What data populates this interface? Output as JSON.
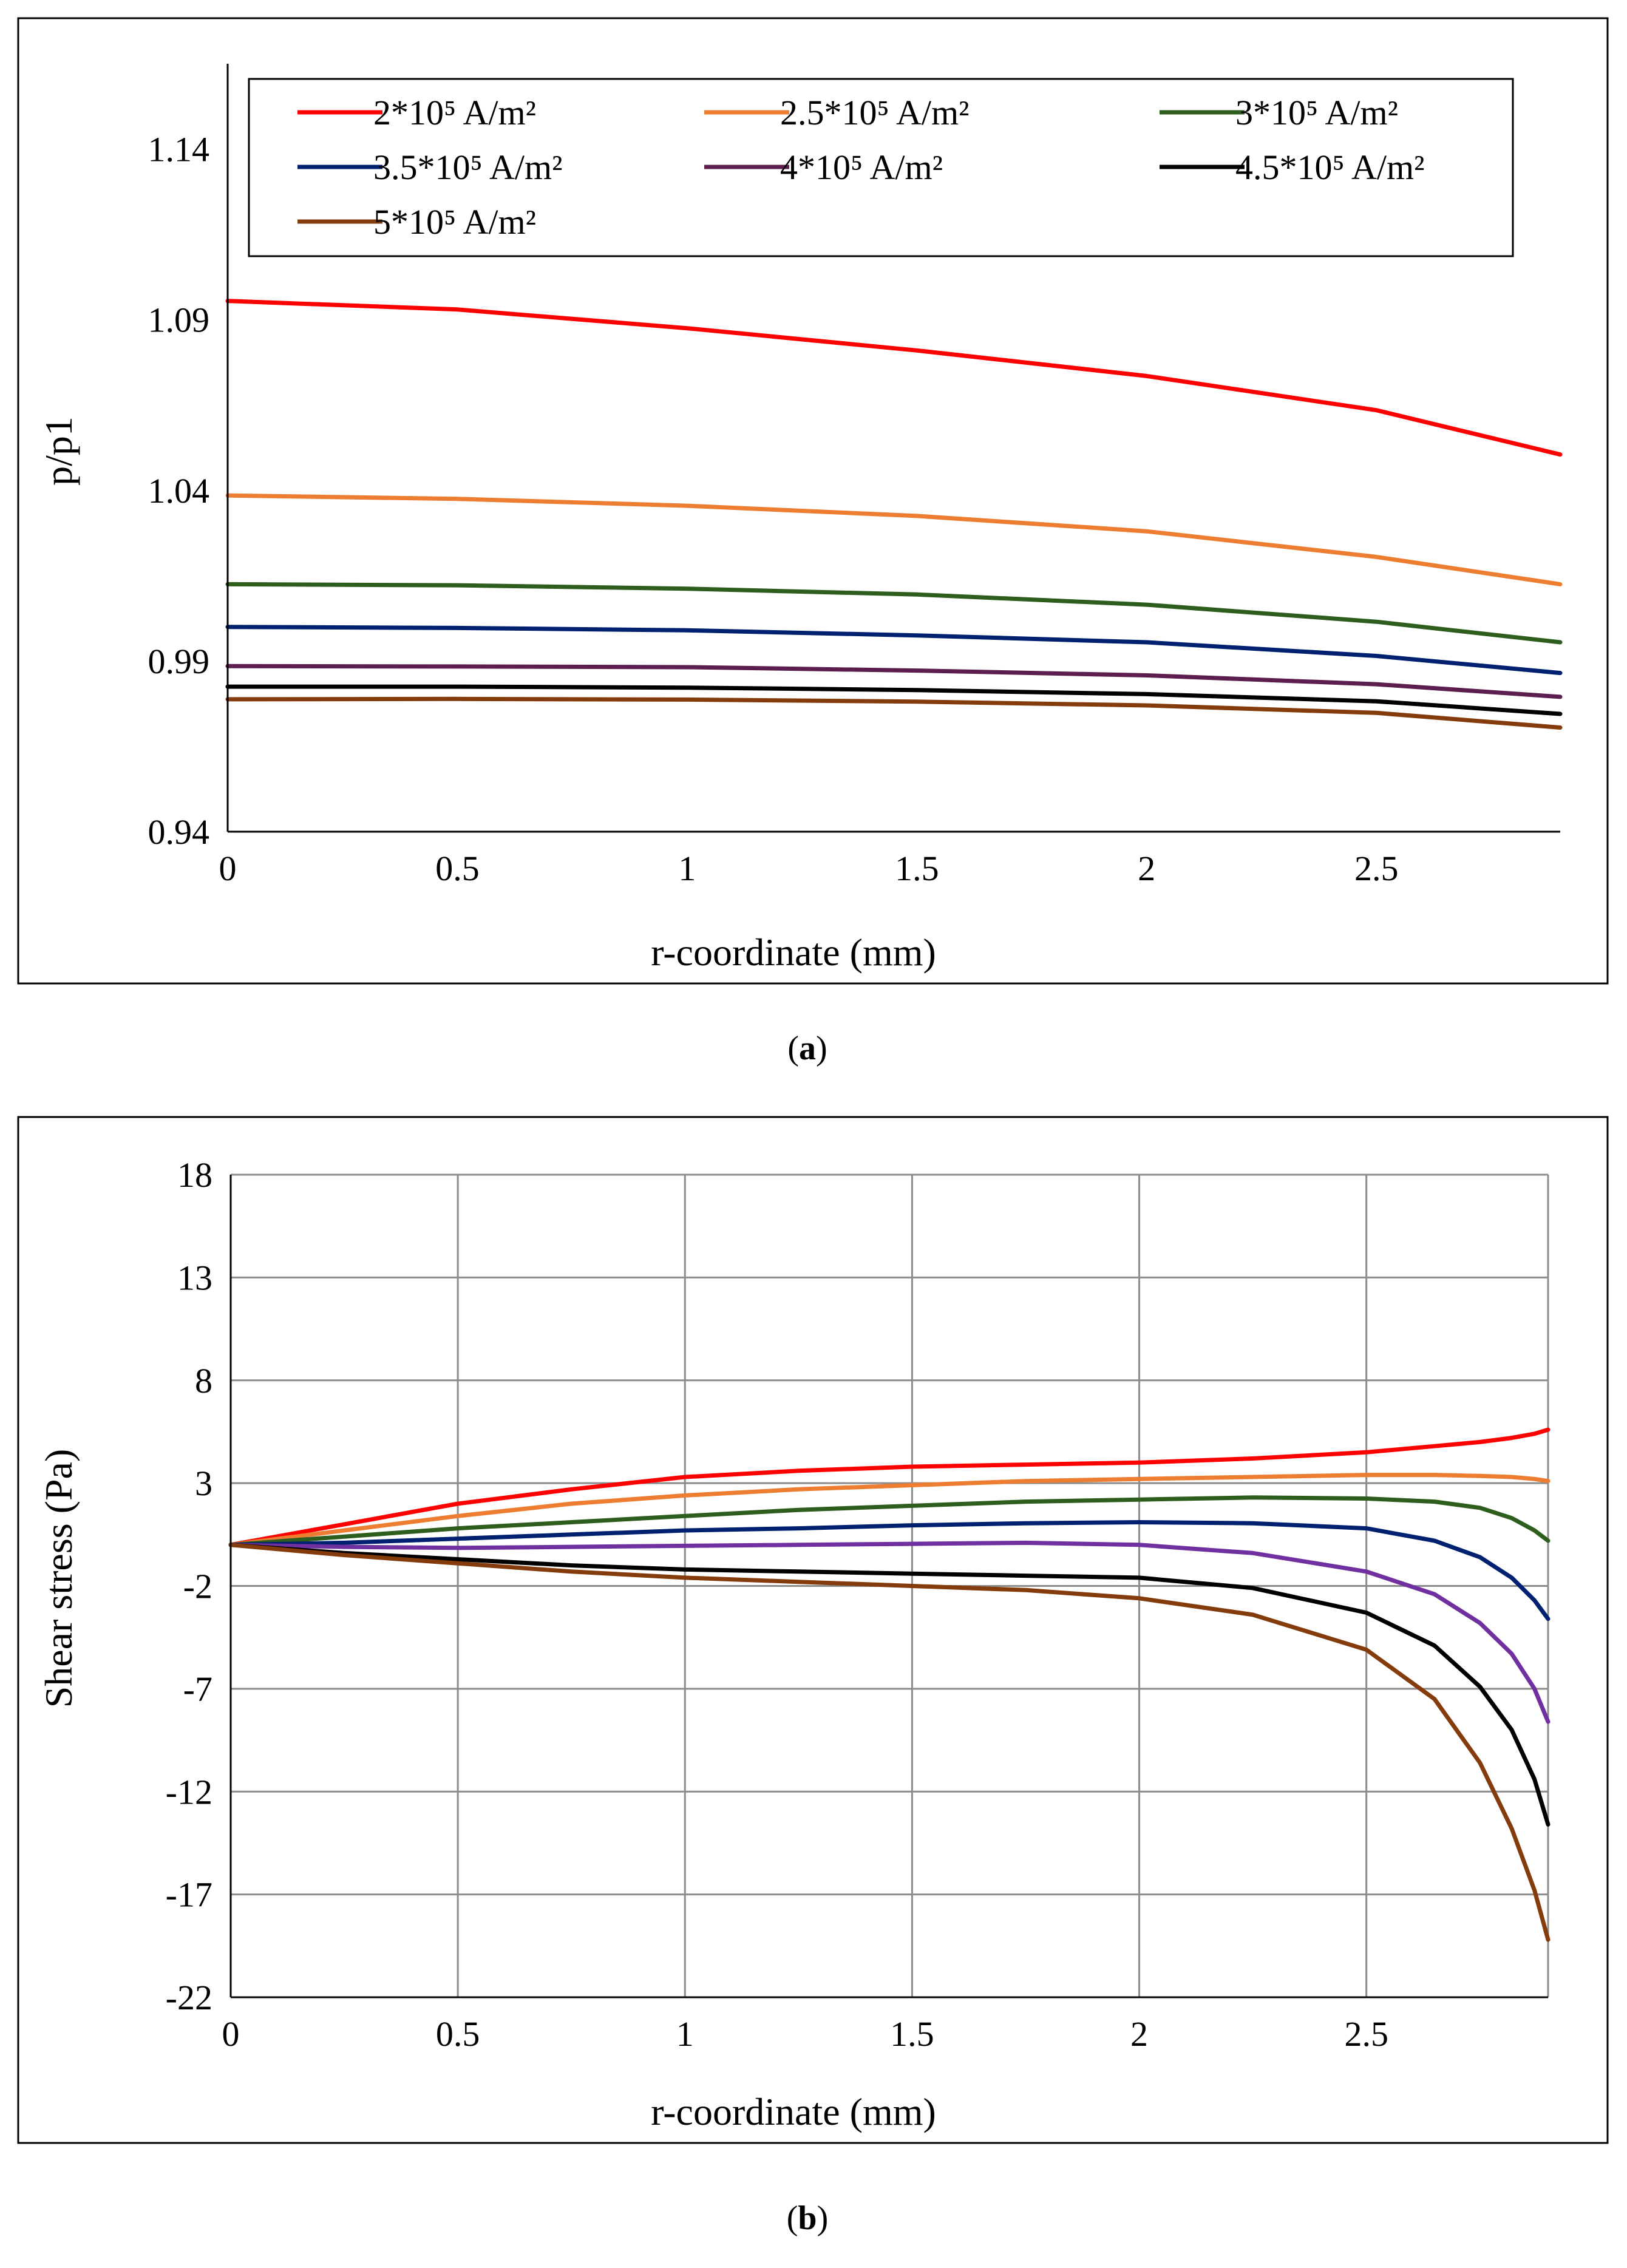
{
  "chart_data": [
    {
      "id": "a",
      "type": "line",
      "caption": "(a)",
      "caption_letter": "a",
      "xlabel": "r-coordinate (mm)",
      "ylabel": "p/p1",
      "xlim": [
        0,
        2.9
      ],
      "ylim": [
        0.94,
        1.165
      ],
      "xticks": [
        0,
        0.5,
        1,
        1.5,
        2,
        2.5
      ],
      "yticks": [
        0.94,
        0.99,
        1.04,
        1.09,
        1.14
      ],
      "xtick_labels": [
        "0",
        "0.5",
        "1",
        "1.5",
        "2",
        "2.5"
      ],
      "ytick_labels": [
        "0.94",
        "0.99",
        "1.04",
        "1.09",
        "1.14"
      ],
      "grid": false,
      "legend": {
        "placement": "top",
        "columns": 3
      },
      "x": [
        0,
        0.5,
        1,
        1.5,
        2,
        2.5,
        2.9
      ],
      "series": [
        {
          "name": "2*10⁵ A/m²",
          "color": "#ff0000",
          "values": [
            1.0955,
            1.093,
            1.0875,
            1.081,
            1.0735,
            1.0635,
            1.0505
          ]
        },
        {
          "name": "2.5*10⁵ A/m²",
          "color": "#ed7d31",
          "values": [
            1.0385,
            1.0375,
            1.0355,
            1.0325,
            1.028,
            1.0205,
            1.0125
          ]
        },
        {
          "name": "3*10⁵ A/m²",
          "color": "#2e5e1e",
          "values": [
            1.0125,
            1.0122,
            1.0112,
            1.0095,
            1.0065,
            1.0015,
            0.9955
          ]
        },
        {
          "name": "3.5*10⁵ A/m²",
          "color": "#002070",
          "values": [
            1.0,
            0.9997,
            0.999,
            0.9975,
            0.9955,
            0.9915,
            0.9865
          ]
        },
        {
          "name": "4*10⁵ A/m²",
          "color": "#5b1e4f",
          "values": [
            0.9885,
            0.9884,
            0.9882,
            0.9872,
            0.9858,
            0.9832,
            0.9795
          ]
        },
        {
          "name": "4.5*10⁵ A/m²",
          "color": "#000000",
          "values": [
            0.9825,
            0.9825,
            0.9822,
            0.9815,
            0.9803,
            0.9782,
            0.9745
          ]
        },
        {
          "name": "5*10⁵ A/m²",
          "color": "#843c0c",
          "values": [
            0.9788,
            0.9789,
            0.9787,
            0.9781,
            0.977,
            0.9748,
            0.9705
          ]
        }
      ]
    },
    {
      "id": "b",
      "type": "line",
      "caption": "(b)",
      "caption_letter": "b",
      "xlabel": "r-coordinate (mm)",
      "ylabel": "Shear stress (Pa)",
      "xlim": [
        0,
        2.9
      ],
      "ylim": [
        -22,
        18
      ],
      "xticks": [
        0,
        0.5,
        1,
        1.5,
        2,
        2.5
      ],
      "yticks": [
        -22,
        -17,
        -12,
        -7,
        -2,
        3,
        8,
        13,
        18
      ],
      "xtick_labels": [
        "0",
        "0.5",
        "1",
        "1.5",
        "2",
        "2.5"
      ],
      "ytick_labels": [
        "-22",
        "-17",
        "-12",
        "-7",
        "-2",
        "3",
        "8",
        "13",
        "18"
      ],
      "grid": true,
      "legend": null,
      "x": [
        0,
        0.25,
        0.5,
        0.75,
        1,
        1.25,
        1.5,
        1.75,
        2,
        2.25,
        2.5,
        2.65,
        2.75,
        2.82,
        2.87,
        2.9
      ],
      "series": [
        {
          "name": "2*10⁵ A/m²",
          "color": "#ff0000",
          "values": [
            0,
            1.0,
            2.0,
            2.7,
            3.3,
            3.6,
            3.8,
            3.9,
            4.0,
            4.2,
            4.5,
            4.8,
            5.0,
            5.2,
            5.4,
            5.6
          ]
        },
        {
          "name": "2.5*10⁵ A/m²",
          "color": "#ed7d31",
          "values": [
            0,
            0.7,
            1.4,
            2.0,
            2.4,
            2.7,
            2.9,
            3.1,
            3.2,
            3.3,
            3.4,
            3.4,
            3.35,
            3.3,
            3.2,
            3.1
          ]
        },
        {
          "name": "3*10⁵ A/m²",
          "color": "#2e5e1e",
          "values": [
            0,
            0.4,
            0.8,
            1.1,
            1.4,
            1.7,
            1.9,
            2.1,
            2.2,
            2.3,
            2.25,
            2.1,
            1.8,
            1.3,
            0.7,
            0.2
          ]
        },
        {
          "name": "3.5*10⁵ A/m²",
          "color": "#002070",
          "values": [
            0,
            0.1,
            0.3,
            0.5,
            0.7,
            0.8,
            0.95,
            1.05,
            1.1,
            1.05,
            0.8,
            0.2,
            -0.6,
            -1.6,
            -2.7,
            -3.6
          ]
        },
        {
          "name": "4*10⁵ A/m²",
          "color": "#7030a0",
          "values": [
            0,
            -0.1,
            -0.15,
            -0.1,
            -0.05,
            0.0,
            0.05,
            0.1,
            0.0,
            -0.4,
            -1.3,
            -2.4,
            -3.8,
            -5.3,
            -7.0,
            -8.6
          ]
        },
        {
          "name": "4.5*10⁵ A/m²",
          "color": "#000000",
          "values": [
            0,
            -0.4,
            -0.7,
            -1.0,
            -1.2,
            -1.3,
            -1.4,
            -1.5,
            -1.6,
            -2.1,
            -3.3,
            -4.9,
            -6.9,
            -9.0,
            -11.4,
            -13.6
          ]
        },
        {
          "name": "5*10⁵ A/m²",
          "color": "#843c0c",
          "values": [
            0,
            -0.5,
            -0.9,
            -1.3,
            -1.6,
            -1.8,
            -2.0,
            -2.2,
            -2.6,
            -3.4,
            -5.1,
            -7.5,
            -10.6,
            -13.8,
            -16.8,
            -19.2
          ]
        }
      ]
    }
  ]
}
